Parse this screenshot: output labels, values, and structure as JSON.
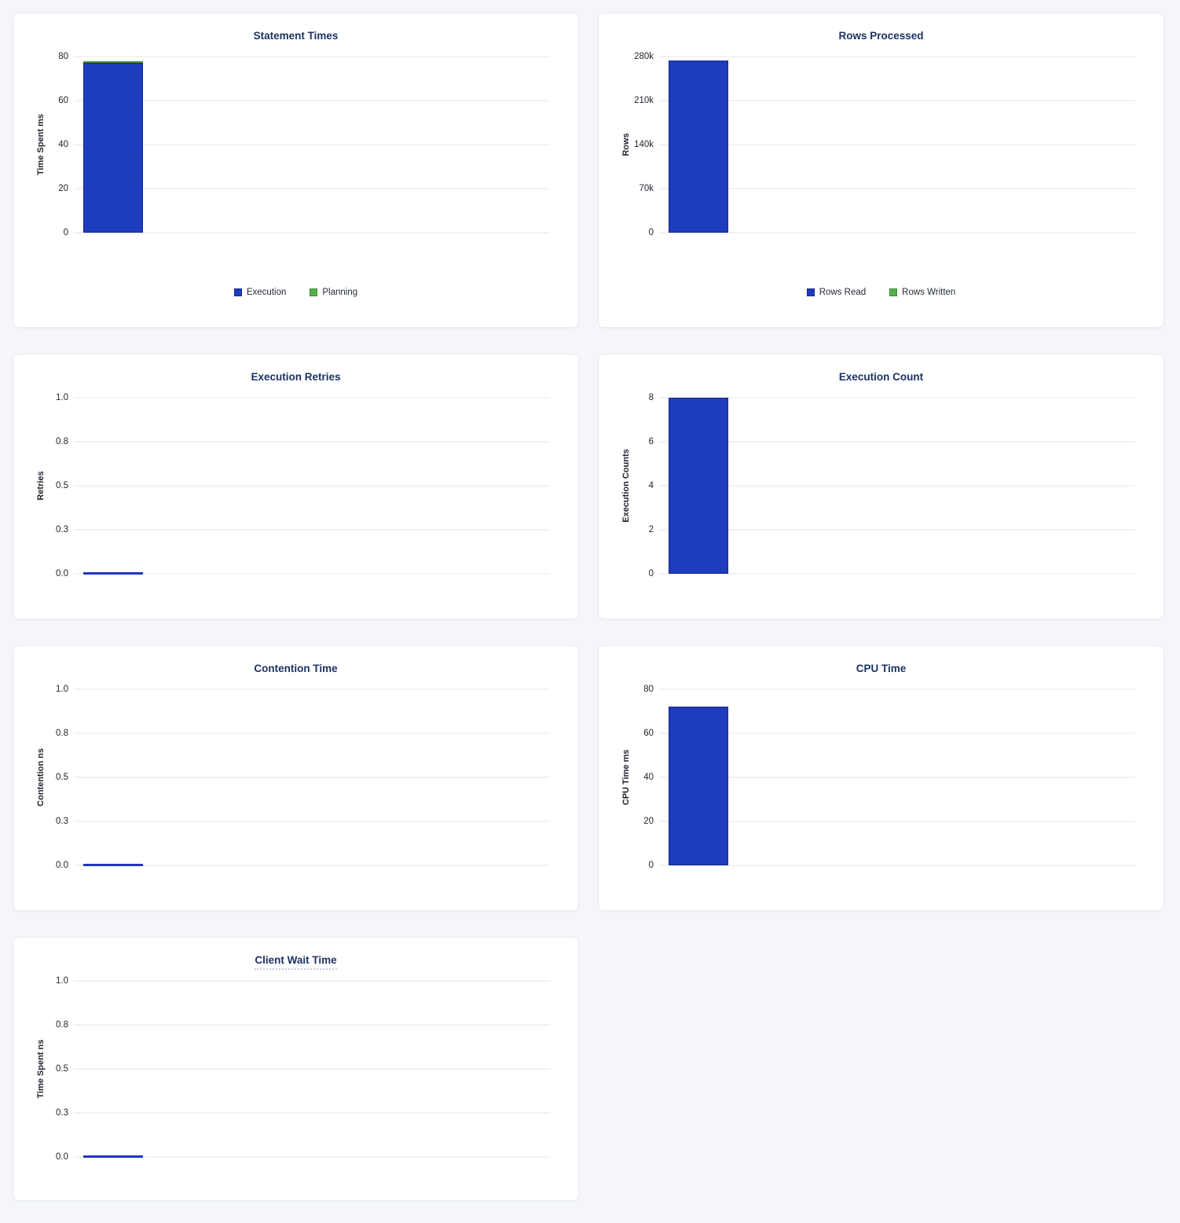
{
  "colors": {
    "bar_blue": "#1e3cbe",
    "bar_blue_border": "#16278f",
    "bar_green": "#55b04a",
    "bar_green_border": "#3f8c3c",
    "zero_line": "#2136bd",
    "title_text": "#1d3263",
    "grid_line": "#e5e6e8",
    "tick_text": "#20252e",
    "page_bg": "#f4f6f9",
    "card_bg": "#ffffff",
    "card_border": "#e8ecf2",
    "tooltip_underline": "#c3cbdb"
  },
  "chart_data": [
    {
      "id": "statement-times",
      "type": "bar",
      "title": "Statement Times",
      "ylabel": "Time Spent ms",
      "ylim": [
        0,
        80
      ],
      "ytick_labels": [
        "80",
        "60",
        "40",
        "20",
        "0"
      ],
      "grid": true,
      "stacked": true,
      "legend_position": "bottom",
      "title_underlined": false,
      "has_legend": true,
      "series": [
        {
          "name": "Execution",
          "value": 77,
          "color": "bar_blue",
          "border": "bar_blue_border"
        },
        {
          "name": "Planning",
          "value": 1,
          "color": "bar_green",
          "border": "bar_green_border"
        }
      ]
    },
    {
      "id": "rows-processed",
      "type": "bar",
      "title": "Rows Processed",
      "ylabel": "Rows",
      "ylim": [
        0,
        280000
      ],
      "ytick_labels": [
        "280k",
        "210k",
        "140k",
        "70k",
        "0"
      ],
      "grid": true,
      "stacked": true,
      "legend_position": "bottom",
      "title_underlined": false,
      "has_legend": true,
      "series": [
        {
          "name": "Rows Read",
          "value": 274000,
          "color": "bar_blue",
          "border": "bar_blue_border"
        },
        {
          "name": "Rows Written",
          "value": 0,
          "color": "bar_green",
          "border": "bar_green_border"
        }
      ]
    },
    {
      "id": "execution-retries",
      "type": "bar",
      "title": "Execution Retries",
      "ylabel": "Retries",
      "ylim": [
        0,
        1
      ],
      "ytick_labels": [
        "1.0",
        "0.8",
        "0.5",
        "0.3",
        "0.0"
      ],
      "grid": true,
      "stacked": false,
      "title_underlined": false,
      "has_legend": false,
      "series": [
        {
          "name": "Retries",
          "value": 0,
          "color": "bar_blue",
          "border": "bar_blue_border"
        }
      ]
    },
    {
      "id": "execution-count",
      "type": "bar",
      "title": "Execution Count",
      "ylabel": "Execution Counts",
      "ylim": [
        0,
        8
      ],
      "ytick_labels": [
        "8",
        "6",
        "4",
        "2",
        "0"
      ],
      "grid": true,
      "stacked": false,
      "title_underlined": false,
      "has_legend": false,
      "series": [
        {
          "name": "Execution Count",
          "value": 8,
          "color": "bar_blue",
          "border": "bar_blue_border"
        }
      ]
    },
    {
      "id": "contention-time",
      "type": "bar",
      "title": "Contention Time",
      "ylabel": "Contention ns",
      "ylim": [
        0,
        1
      ],
      "ytick_labels": [
        "1.0",
        "0.8",
        "0.5",
        "0.3",
        "0.0"
      ],
      "grid": true,
      "stacked": false,
      "title_underlined": false,
      "has_legend": false,
      "series": [
        {
          "name": "Contention",
          "value": 0,
          "color": "bar_blue",
          "border": "bar_blue_border"
        }
      ]
    },
    {
      "id": "cpu-time",
      "type": "bar",
      "title": "CPU Time",
      "ylabel": "CPU Time ms",
      "ylim": [
        0,
        80
      ],
      "ytick_labels": [
        "80",
        "60",
        "40",
        "20",
        "0"
      ],
      "grid": true,
      "stacked": false,
      "title_underlined": false,
      "has_legend": false,
      "series": [
        {
          "name": "CPU Time",
          "value": 72,
          "color": "bar_blue",
          "border": "bar_blue_border"
        }
      ]
    },
    {
      "id": "client-wait-time",
      "type": "bar",
      "title": "Client Wait Time",
      "ylabel": "Time Spent ns",
      "ylim": [
        0,
        1
      ],
      "ytick_labels": [
        "1.0",
        "0.8",
        "0.5",
        "0.3",
        "0.0"
      ],
      "grid": true,
      "stacked": false,
      "title_underlined": true,
      "has_legend": false,
      "series": [
        {
          "name": "Client Wait",
          "value": 0,
          "color": "bar_blue",
          "border": "bar_blue_border"
        }
      ]
    }
  ]
}
